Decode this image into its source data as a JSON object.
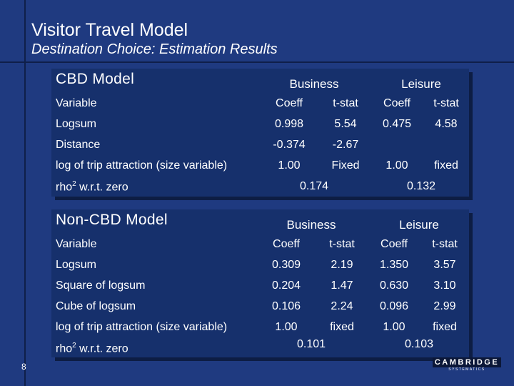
{
  "title": "Visitor Travel Model",
  "subtitle": "Destination Choice: Estimation Results",
  "page_number": "8",
  "logo": {
    "name": "CAMBRIDGE",
    "sub": "SYSTEMATICS"
  },
  "cbd": {
    "heading": "CBD Model",
    "groups": {
      "business": "Business",
      "leisure": "Leisure"
    },
    "header": {
      "variable": "Variable",
      "coeff": "Coeff",
      "tstat": "t-stat"
    },
    "rows": [
      {
        "variable": "Logsum",
        "b_coeff": "0.998",
        "b_tstat": "5.54",
        "l_coeff": "0.475",
        "l_tstat": "4.58"
      },
      {
        "variable": "Distance",
        "b_coeff": "-0.374",
        "b_tstat": "-2.67",
        "l_coeff": "",
        "l_tstat": ""
      },
      {
        "variable": "log of trip attraction (size variable)",
        "b_coeff": "1.00",
        "b_tstat": "Fixed",
        "l_coeff": "1.00",
        "l_tstat": "fixed"
      }
    ],
    "rho": {
      "label": "rho",
      "sup": "2",
      "suffix": " w.r.t. zero",
      "business": "0.174",
      "leisure": "0.132"
    }
  },
  "noncbd": {
    "heading": "Non-CBD Model",
    "groups": {
      "business": "Business",
      "leisure": "Leisure"
    },
    "header": {
      "variable": "Variable",
      "coeff": "Coeff",
      "tstat": "t-stat"
    },
    "rows": [
      {
        "variable": "Logsum",
        "b_coeff": "0.309",
        "b_tstat": "2.19",
        "l_coeff": "1.350",
        "l_tstat": "3.57"
      },
      {
        "variable": "Square of logsum",
        "b_coeff": "0.204",
        "b_tstat": "1.47",
        "l_coeff": "0.630",
        "l_tstat": "3.10"
      },
      {
        "variable": "Cube of logsum",
        "b_coeff": "0.106",
        "b_tstat": "2.24",
        "l_coeff": "0.096",
        "l_tstat": "2.99"
      },
      {
        "variable": "log of trip attraction (size variable)",
        "b_coeff": "1.00",
        "b_tstat": "fixed",
        "l_coeff": "1.00",
        "l_tstat": "fixed"
      }
    ],
    "rho": {
      "label": "rho",
      "sup": "2",
      "suffix": " w.r.t. zero",
      "business": "0.101",
      "leisure": "0.103"
    }
  }
}
